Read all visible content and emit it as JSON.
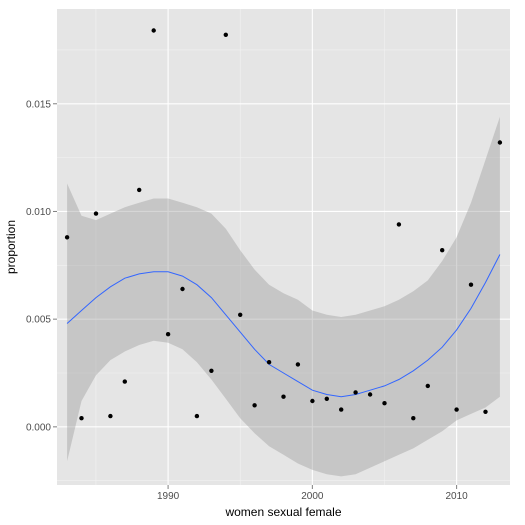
{
  "chart_data": {
    "type": "scatter",
    "xlabel": "women sexual female",
    "ylabel": "proportion",
    "xlim": [
      1982.3,
      2013.7
    ],
    "ylim": [
      -0.0027,
      0.0194
    ],
    "x_ticks": [
      1990,
      2000,
      2010
    ],
    "x_tick_labels": [
      "1990",
      "2000",
      "2010"
    ],
    "y_ticks": [
      0.0,
      0.005,
      0.01,
      0.015
    ],
    "y_tick_labels": [
      "0.000",
      "0.005",
      "0.010",
      "0.015"
    ],
    "grid": true,
    "colors": {
      "panel": "#e5e5e5",
      "grid_major": "#ffffff",
      "points": "#000000",
      "smooth_line": "#3366ff",
      "ribbon": "#999999"
    },
    "points": [
      {
        "x": 1983,
        "y": 0.0088
      },
      {
        "x": 1984,
        "y": 0.0004
      },
      {
        "x": 1985,
        "y": 0.0099
      },
      {
        "x": 1986,
        "y": 0.0005
      },
      {
        "x": 1987,
        "y": 0.0021
      },
      {
        "x": 1988,
        "y": 0.011
      },
      {
        "x": 1989,
        "y": 0.0184
      },
      {
        "x": 1990,
        "y": 0.0043
      },
      {
        "x": 1991,
        "y": 0.0064
      },
      {
        "x": 1992,
        "y": 0.0005
      },
      {
        "x": 1993,
        "y": 0.0026
      },
      {
        "x": 1994,
        "y": 0.0182
      },
      {
        "x": 1995,
        "y": 0.0052
      },
      {
        "x": 1996,
        "y": 0.001
      },
      {
        "x": 1997,
        "y": 0.003
      },
      {
        "x": 1998,
        "y": 0.0014
      },
      {
        "x": 1999,
        "y": 0.0029
      },
      {
        "x": 2000,
        "y": 0.0012
      },
      {
        "x": 2001,
        "y": 0.0013
      },
      {
        "x": 2002,
        "y": 0.0008
      },
      {
        "x": 2003,
        "y": 0.0016
      },
      {
        "x": 2004,
        "y": 0.0015
      },
      {
        "x": 2005,
        "y": 0.0011
      },
      {
        "x": 2006,
        "y": 0.0094
      },
      {
        "x": 2007,
        "y": 0.0004
      },
      {
        "x": 2008,
        "y": 0.0019
      },
      {
        "x": 2009,
        "y": 0.0082
      },
      {
        "x": 2010,
        "y": 0.0008
      },
      {
        "x": 2011,
        "y": 0.0066
      },
      {
        "x": 2012,
        "y": 0.0007
      },
      {
        "x": 2013,
        "y": 0.0132
      }
    ],
    "smooth": {
      "method": "loess",
      "x": [
        1983,
        1984,
        1985,
        1986,
        1987,
        1988,
        1989,
        1990,
        1991,
        1992,
        1993,
        1994,
        1995,
        1996,
        1997,
        1998,
        1999,
        2000,
        2001,
        2002,
        2003,
        2004,
        2005,
        2006,
        2007,
        2008,
        2009,
        2010,
        2011,
        2012,
        2013
      ],
      "y": [
        0.0048,
        0.0054,
        0.006,
        0.0065,
        0.0069,
        0.0071,
        0.0072,
        0.0072,
        0.007,
        0.0066,
        0.006,
        0.0052,
        0.0044,
        0.0036,
        0.0029,
        0.0025,
        0.0021,
        0.0017,
        0.0015,
        0.0014,
        0.0015,
        0.0017,
        0.0019,
        0.0022,
        0.0026,
        0.0031,
        0.0037,
        0.0045,
        0.0055,
        0.0067,
        0.008
      ],
      "lower": [
        -0.0016,
        0.0012,
        0.0024,
        0.0031,
        0.0035,
        0.0038,
        0.004,
        0.0039,
        0.0036,
        0.003,
        0.0022,
        0.0013,
        0.0004,
        -0.0003,
        -0.0009,
        -0.0013,
        -0.0017,
        -0.002,
        -0.0022,
        -0.0023,
        -0.0022,
        -0.0019,
        -0.0016,
        -0.0013,
        -0.001,
        -0.0006,
        -0.0002,
        0.0003,
        0.0006,
        0.0009,
        0.0014
      ],
      "upper": [
        0.0113,
        0.0098,
        0.0096,
        0.0099,
        0.0102,
        0.0104,
        0.0106,
        0.0106,
        0.0104,
        0.0102,
        0.0099,
        0.0092,
        0.0082,
        0.0073,
        0.0066,
        0.0062,
        0.0059,
        0.0054,
        0.0052,
        0.0051,
        0.0052,
        0.0054,
        0.0056,
        0.0059,
        0.0063,
        0.0068,
        0.0077,
        0.0088,
        0.0104,
        0.0124,
        0.0144
      ]
    }
  }
}
